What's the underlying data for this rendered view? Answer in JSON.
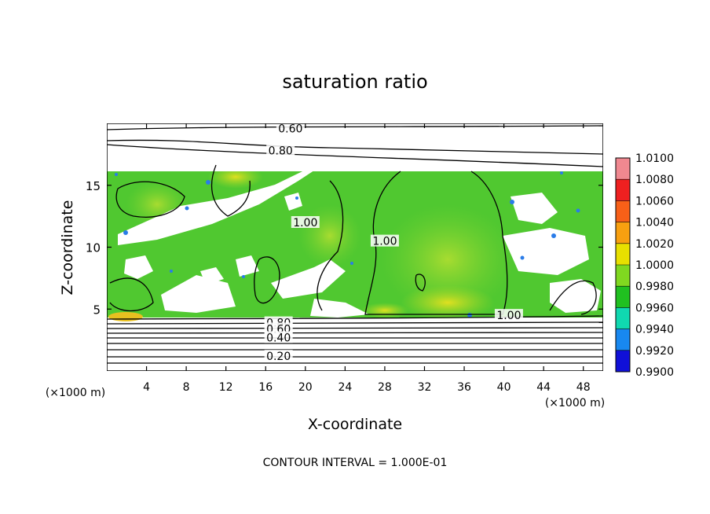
{
  "chart_data": {
    "type": "heatmap",
    "title": "saturation ratio",
    "xlabel": "X-coordinate",
    "ylabel": "Z-coordinate",
    "x_unit_label": "(×1000 m)",
    "z_unit_label": "(×1000 m)",
    "footer": "CONTOUR INTERVAL = 1.000E-01",
    "xlim": [
      0,
      50
    ],
    "zlim": [
      0,
      20
    ],
    "x_ticks": [
      "4",
      "8",
      "12",
      "16",
      "20",
      "24",
      "28",
      "32",
      "36",
      "40",
      "44",
      "48"
    ],
    "z_ticks": [
      "5",
      "10",
      "15"
    ],
    "colorbar": {
      "levels": [
        "1.0100",
        "1.0080",
        "1.0060",
        "1.0040",
        "1.0020",
        "1.0000",
        "0.9980",
        "0.9960",
        "0.9940",
        "0.9920",
        "0.9900"
      ],
      "colors": [
        "#f08890",
        "#ee2020",
        "#f86018",
        "#f8a010",
        "#e8e000",
        "#80d820",
        "#20c020",
        "#10d8b0",
        "#1888f0",
        "#1010d8",
        "#602090"
      ]
    },
    "contour_labels": [
      {
        "text": "0.60",
        "x": 18.5,
        "z": 19.6
      },
      {
        "text": "0.80",
        "x": 17.5,
        "z": 17.8
      },
      {
        "text": "1.00",
        "x": 20.0,
        "z": 12.0
      },
      {
        "text": "1.00",
        "x": 28.0,
        "z": 10.5
      },
      {
        "text": "1.00",
        "x": 40.5,
        "z": 4.5
      },
      {
        "text": "0.80",
        "x": 17.3,
        "z": 3.9
      },
      {
        "text": "0.60",
        "x": 17.3,
        "z": 3.4
      },
      {
        "text": "0.40",
        "x": 17.3,
        "z": 2.7
      },
      {
        "text": "0.20",
        "x": 17.3,
        "z": 1.2
      }
    ]
  }
}
